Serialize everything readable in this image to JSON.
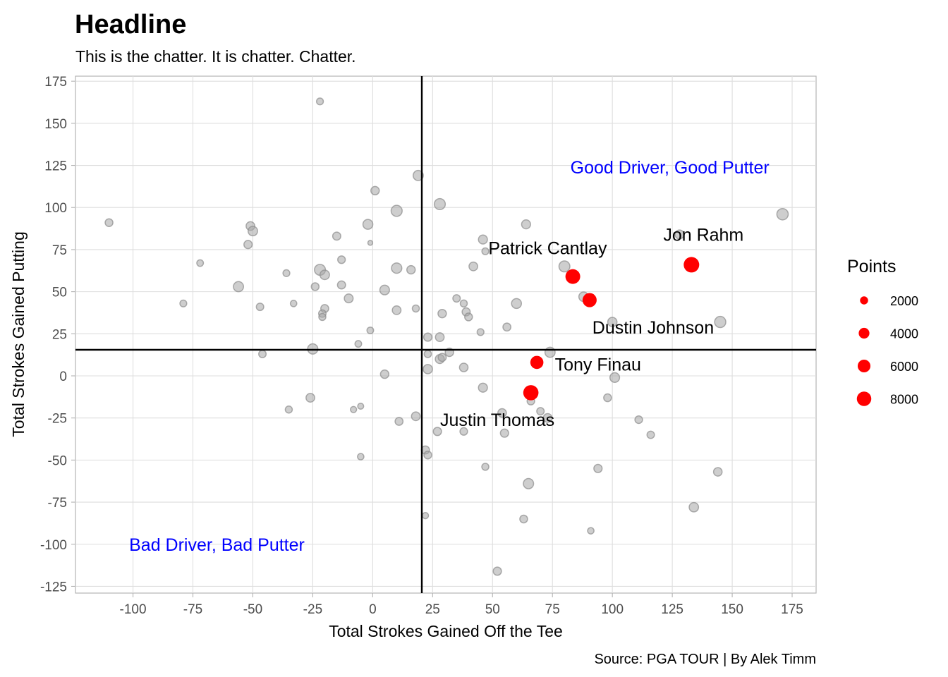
{
  "header": {
    "title": "Headline",
    "subtitle": "This is the chatter. It is chatter. Chatter.",
    "caption": "Source: PGA TOUR | By Alek Timm"
  },
  "chart_data": {
    "type": "scatter",
    "title": "Headline",
    "subtitle": "This is the chatter. It is chatter. Chatter.",
    "xlabel": "Total Strokes Gained Off the Tee",
    "ylabel": "Total Strokes Gained Putting",
    "xlim": [
      -124,
      185
    ],
    "ylim": [
      -129,
      178
    ],
    "x_ticks": [
      -100,
      -75,
      -50,
      -25,
      0,
      25,
      50,
      75,
      100,
      125,
      150,
      175
    ],
    "y_ticks": [
      -125,
      -100,
      -75,
      -50,
      -25,
      0,
      25,
      50,
      75,
      100,
      125,
      150,
      175
    ],
    "grid": true,
    "reference_lines": {
      "vertical_x": 20.5,
      "horizontal_y": 15.5
    },
    "colors": {
      "background_points": "#a6a6a6",
      "highlight": "#ff0000",
      "quadrant_text": "#0000ff"
    },
    "quadrant_labels": [
      {
        "text": "Good Driver, Good Putter",
        "x": 124,
        "y": 124
      },
      {
        "text": "Bad Driver, Bad Putter",
        "x": -65,
        "y": -100
      }
    ],
    "legend": {
      "title": "Points",
      "position": "right",
      "entries": [
        {
          "label": "2000",
          "points": 2000
        },
        {
          "label": "4000",
          "points": 4000
        },
        {
          "label": "6000",
          "points": 6000
        },
        {
          "label": "8000",
          "points": 8000
        }
      ]
    },
    "highlighted": [
      {
        "name": "Jon Rahm",
        "x": 133,
        "y": 66,
        "points": 9400,
        "label_x": 138,
        "label_y": 84
      },
      {
        "name": "Patrick Cantlay",
        "x": 83.5,
        "y": 59,
        "points": 8400,
        "label_x": 73,
        "label_y": 76
      },
      {
        "name": "Dustin Johnson",
        "x": 90.5,
        "y": 45,
        "points": 7600,
        "label_x": 117,
        "label_y": 29
      },
      {
        "name": "Tony Finau",
        "x": 68.5,
        "y": 8,
        "points": 6400,
        "label_x": 94,
        "label_y": 7
      },
      {
        "name": "Justin Thomas",
        "x": 66,
        "y": -10,
        "points": 9000,
        "label_x": 52,
        "label_y": -26
      }
    ],
    "points": [
      {
        "x": -22,
        "y": 163,
        "points": 1300
      },
      {
        "x": -110,
        "y": 91,
        "points": 1800
      },
      {
        "x": -51,
        "y": 89,
        "points": 2400
      },
      {
        "x": -50,
        "y": 86,
        "points": 3000
      },
      {
        "x": -52,
        "y": 78,
        "points": 2100
      },
      {
        "x": -72,
        "y": 67,
        "points": 1200
      },
      {
        "x": -79,
        "y": 43,
        "points": 1300
      },
      {
        "x": -56,
        "y": 53,
        "points": 3500
      },
      {
        "x": -47,
        "y": 41,
        "points": 1600
      },
      {
        "x": -46,
        "y": 13,
        "points": 1600
      },
      {
        "x": -36,
        "y": 61,
        "points": 1300
      },
      {
        "x": -33,
        "y": 43,
        "points": 1100
      },
      {
        "x": -35,
        "y": -20,
        "points": 1400
      },
      {
        "x": -22,
        "y": 63,
        "points": 4200
      },
      {
        "x": -20,
        "y": 60,
        "points": 3000
      },
      {
        "x": -24,
        "y": 53,
        "points": 1800
      },
      {
        "x": -20,
        "y": 40,
        "points": 1900
      },
      {
        "x": -21,
        "y": 37,
        "points": 1600
      },
      {
        "x": -21,
        "y": 35,
        "points": 1400
      },
      {
        "x": -25,
        "y": 16,
        "points": 3600
      },
      {
        "x": -26,
        "y": -13,
        "points": 2400
      },
      {
        "x": -15,
        "y": 83,
        "points": 2000
      },
      {
        "x": -13,
        "y": 69,
        "points": 1700
      },
      {
        "x": -13,
        "y": 54,
        "points": 2000
      },
      {
        "x": -10,
        "y": 46,
        "points": 2500
      },
      {
        "x": -6,
        "y": 19,
        "points": 1200
      },
      {
        "x": -8,
        "y": -20,
        "points": 1000
      },
      {
        "x": -5,
        "y": -18,
        "points": 900
      },
      {
        "x": -5,
        "y": -48,
        "points": 1100
      },
      {
        "x": 1,
        "y": 110,
        "points": 2200
      },
      {
        "x": -2,
        "y": 90,
        "points": 3300
      },
      {
        "x": -1,
        "y": 79,
        "points": 500
      },
      {
        "x": -1,
        "y": 27,
        "points": 1200
      },
      {
        "x": 5,
        "y": 51,
        "points": 3100
      },
      {
        "x": 5,
        "y": 1,
        "points": 2200
      },
      {
        "x": 10,
        "y": 98,
        "points": 4300
      },
      {
        "x": 10,
        "y": 64,
        "points": 3700
      },
      {
        "x": 10,
        "y": 39,
        "points": 2400
      },
      {
        "x": 11,
        "y": -27,
        "points": 1900
      },
      {
        "x": 16,
        "y": 63,
        "points": 2200
      },
      {
        "x": 18,
        "y": 40,
        "points": 1400
      },
      {
        "x": 19,
        "y": 119,
        "points": 3500
      },
      {
        "x": 18,
        "y": -24,
        "points": 2400
      },
      {
        "x": 23,
        "y": 4,
        "points": 2800
      },
      {
        "x": 23,
        "y": 23,
        "points": 2100
      },
      {
        "x": 23,
        "y": 13,
        "points": 1500
      },
      {
        "x": 28,
        "y": 102,
        "points": 4300
      },
      {
        "x": 29,
        "y": 37,
        "points": 2200
      },
      {
        "x": 28,
        "y": 23,
        "points": 2400
      },
      {
        "x": 28,
        "y": 10,
        "points": 2600
      },
      {
        "x": 29,
        "y": 11,
        "points": 2000
      },
      {
        "x": 32,
        "y": 14,
        "points": 2200
      },
      {
        "x": 27,
        "y": -33,
        "points": 2100
      },
      {
        "x": 22,
        "y": -44,
        "points": 2000
      },
      {
        "x": 23,
        "y": -47,
        "points": 1800
      },
      {
        "x": 22,
        "y": -83,
        "points": 1000
      },
      {
        "x": 35,
        "y": 46,
        "points": 1600
      },
      {
        "x": 38,
        "y": 43,
        "points": 1400
      },
      {
        "x": 39,
        "y": 38,
        "points": 2000
      },
      {
        "x": 40,
        "y": 35,
        "points": 1800
      },
      {
        "x": 38,
        "y": 5,
        "points": 2300
      },
      {
        "x": 38,
        "y": -33,
        "points": 1700
      },
      {
        "x": 42,
        "y": 65,
        "points": 2400
      },
      {
        "x": 46,
        "y": 81,
        "points": 2600
      },
      {
        "x": 47,
        "y": 74,
        "points": 1300
      },
      {
        "x": 45,
        "y": 26,
        "points": 1300
      },
      {
        "x": 46,
        "y": -7,
        "points": 2600
      },
      {
        "x": 47,
        "y": -54,
        "points": 1400
      },
      {
        "x": 52,
        "y": -116,
        "points": 2100
      },
      {
        "x": 54,
        "y": -22,
        "points": 2300
      },
      {
        "x": 55,
        "y": -34,
        "points": 2100
      },
      {
        "x": 56,
        "y": 29,
        "points": 1900
      },
      {
        "x": 60,
        "y": 43,
        "points": 3300
      },
      {
        "x": 63,
        "y": -85,
        "points": 1800
      },
      {
        "x": 64,
        "y": 90,
        "points": 2600
      },
      {
        "x": 65,
        "y": -64,
        "points": 3600
      },
      {
        "x": 66,
        "y": -15,
        "points": 1700
      },
      {
        "x": 70,
        "y": -21,
        "points": 1600
      },
      {
        "x": 73,
        "y": -25,
        "points": 2400
      },
      {
        "x": 74,
        "y": 14,
        "points": 3500
      },
      {
        "x": 80,
        "y": 65,
        "points": 4200
      },
      {
        "x": 88,
        "y": 47,
        "points": 3000
      },
      {
        "x": 91,
        "y": -92,
        "points": 1100
      },
      {
        "x": 94,
        "y": -55,
        "points": 2100
      },
      {
        "x": 98,
        "y": -13,
        "points": 1800
      },
      {
        "x": 100,
        "y": 32,
        "points": 2800
      },
      {
        "x": 101,
        "y": -1,
        "points": 3100
      },
      {
        "x": 111,
        "y": -26,
        "points": 1700
      },
      {
        "x": 116,
        "y": -35,
        "points": 1600
      },
      {
        "x": 128,
        "y": 84,
        "points": 2600
      },
      {
        "x": 134,
        "y": -78,
        "points": 2900
      },
      {
        "x": 144,
        "y": -57,
        "points": 2300
      },
      {
        "x": 145,
        "y": 32,
        "points": 4400
      },
      {
        "x": 171,
        "y": 96,
        "points": 4600
      }
    ]
  }
}
